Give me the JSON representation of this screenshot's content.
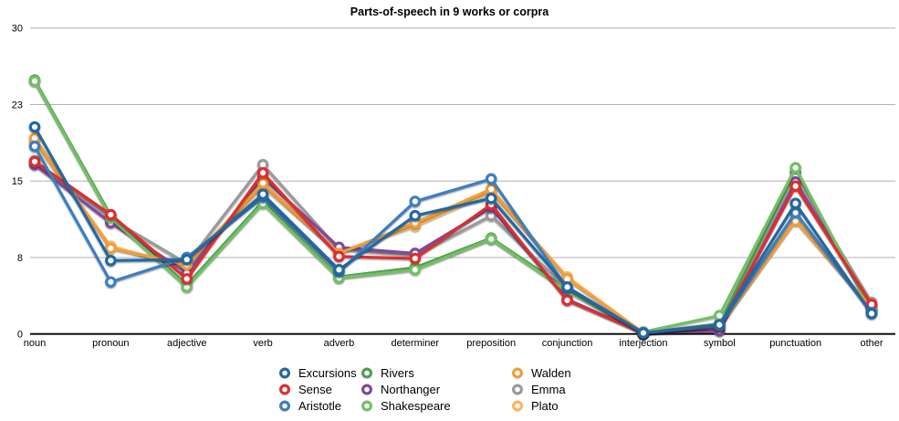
{
  "title": "Parts-of-speech in 9 works or corpra",
  "chart_data": {
    "type": "line",
    "title": "Parts-of-speech in 9 works or corpra",
    "xlabel": "",
    "ylabel": "",
    "ylim": [
      0,
      30
    ],
    "grid": true,
    "legend_position": "bottom",
    "categories": [
      "noun",
      "pronoun",
      "adjective",
      "verb",
      "adverb",
      "determiner",
      "preposition",
      "conjunction",
      "interjection",
      "symbol",
      "punctuation",
      "other"
    ],
    "y_ticks": [
      {
        "value": 0,
        "label": "0"
      },
      {
        "value": 7.5,
        "label": "8"
      },
      {
        "value": 15,
        "label": "15"
      },
      {
        "value": 22.5,
        "label": "23"
      },
      {
        "value": 30,
        "label": "30"
      }
    ],
    "series": [
      {
        "name": "Excursions",
        "color": "#2368a4",
        "values": [
          20.3,
          7.2,
          7.3,
          13.7,
          6.3,
          11.6,
          13.3,
          4.6,
          0.1,
          0.9,
          12.8,
          2.0
        ]
      },
      {
        "name": "Sense",
        "color": "#dd2f2f",
        "values": [
          16.9,
          11.7,
          5.4,
          15.8,
          7.6,
          7.4,
          12.7,
          3.3,
          0.1,
          0.7,
          14.5,
          2.9
        ]
      },
      {
        "name": "Aristotle",
        "color": "#3d7fbf",
        "values": [
          18.4,
          5.1,
          7.5,
          13.4,
          6.1,
          13.0,
          15.2,
          4.5,
          0.1,
          0.8,
          11.9,
          2.1
        ]
      },
      {
        "name": "Rivers",
        "color": "#4f9e50",
        "values": [
          24.9,
          11.6,
          4.8,
          13.0,
          5.6,
          6.5,
          9.4,
          4.4,
          0.1,
          1.0,
          15.8,
          2.4
        ]
      },
      {
        "name": "Northanger",
        "color": "#7d4b9b",
        "values": [
          16.6,
          10.9,
          6.0,
          15.3,
          8.5,
          7.9,
          12.4,
          3.4,
          0.1,
          0.3,
          14.9,
          2.8
        ]
      },
      {
        "name": "Shakespeare",
        "color": "#72bf66",
        "values": [
          24.8,
          11.4,
          4.6,
          12.8,
          5.5,
          6.3,
          9.3,
          4.2,
          0.2,
          1.8,
          16.3,
          2.3
        ]
      },
      {
        "name": "Walden",
        "color": "#f19d3b",
        "values": [
          19.2,
          8.4,
          6.8,
          14.8,
          7.9,
          10.9,
          14.2,
          5.4,
          0.1,
          0.8,
          11.1,
          2.6
        ]
      },
      {
        "name": "Emma",
        "color": "#9a9a9a",
        "values": [
          17.0,
          11.3,
          6.9,
          16.6,
          8.3,
          7.7,
          11.6,
          4.4,
          0.1,
          0.4,
          15.4,
          3.1
        ]
      },
      {
        "name": "Plato",
        "color": "#f8b75d",
        "values": [
          18.8,
          8.6,
          6.6,
          14.5,
          8.0,
          10.6,
          13.9,
          5.6,
          0.1,
          0.7,
          11.3,
          2.5
        ]
      }
    ],
    "draw_order": [
      "Rivers",
      "Plato",
      "Emma",
      "Northanger",
      "Shakespeare",
      "Walden",
      "Sense",
      "Aristotle",
      "Excursions"
    ],
    "legend_columns": [
      [
        "Excursions",
        "Sense",
        "Aristotle"
      ],
      [
        "Rivers",
        "Northanger",
        "Shakespeare"
      ],
      [
        "Walden",
        "Emma",
        "Plato"
      ]
    ]
  },
  "colors": {
    "axis": "#000000",
    "gridline": "#b2b2b2",
    "marker_fill": "#ffffff",
    "title_text": "#000000"
  }
}
